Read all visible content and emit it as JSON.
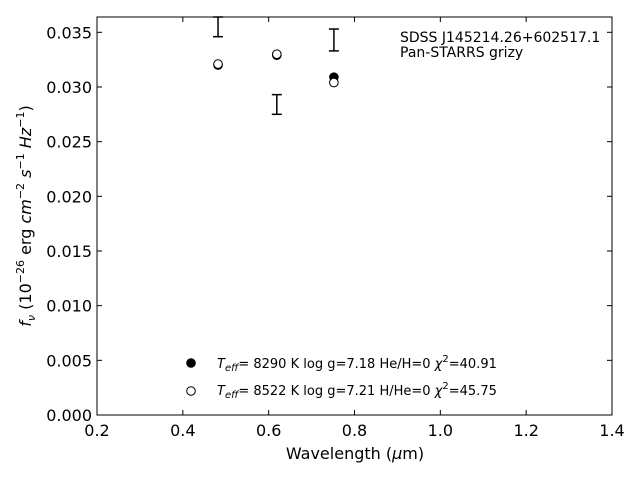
{
  "chart_data": {
    "type": "scatter",
    "xlabel": "Wavelength (μm)",
    "ylabel": "f_ν (10⁻²⁶ erg cm⁻² s⁻¹ Hz⁻¹)",
    "xlim": [
      0.2,
      1.4
    ],
    "ylim": [
      0.0,
      0.0364
    ],
    "x_ticks": [
      0.2,
      0.4,
      0.6,
      0.8,
      1.0,
      1.2,
      1.4
    ],
    "x_tick_labels": [
      "0.2",
      "0.4",
      "0.6",
      "0.8",
      "1.0",
      "1.2",
      "1.4"
    ],
    "y_ticks": [
      0.0,
      0.005,
      0.01,
      0.015,
      0.02,
      0.025,
      0.03,
      0.035
    ],
    "y_tick_labels": [
      "0.000",
      "0.005",
      "0.010",
      "0.015",
      "0.020",
      "0.025",
      "0.030",
      "0.035"
    ],
    "grid": false,
    "annotations": [
      "SDSS J145214.26+602517.1",
      "Pan-STARRS grizy"
    ],
    "observed": {
      "x": [
        0.482,
        0.619,
        0.752
      ],
      "y": [
        0.0355,
        0.0284,
        0.0343
      ],
      "yerr": [
        0.0009,
        0.0009,
        0.001
      ]
    },
    "series": [
      {
        "name": "T_eff= 8290 K log g=7.18 He/H=0 χ²=40.91",
        "marker": "filled-circle",
        "color": "#000000",
        "x": [
          0.482,
          0.619,
          0.752
        ],
        "y": [
          0.032,
          0.0329,
          0.0309
        ]
      },
      {
        "name": "T_eff= 8522 K log g=7.21 H/He=0 χ²=45.75",
        "marker": "open-circle",
        "color": "#000000",
        "x": [
          0.482,
          0.619,
          0.752
        ],
        "y": [
          0.0321,
          0.033,
          0.0304
        ]
      }
    ],
    "legend": {
      "placement": "lower-center",
      "entries": [
        {
          "teff": "8290 K",
          "logg": "log g=7.18",
          "comp": "He/H=0",
          "chi2": "=40.91"
        },
        {
          "teff": "8522 K",
          "logg": "log g=7.21",
          "comp": "H/He=0",
          "chi2": "=45.75"
        }
      ]
    }
  }
}
